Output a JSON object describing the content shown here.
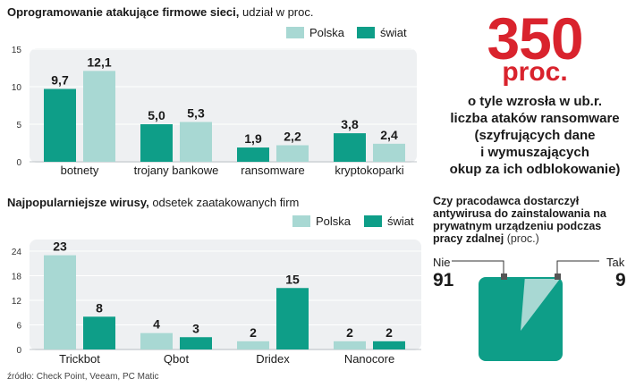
{
  "colors": {
    "polska": "#a8d8d3",
    "swiat": "#0e9e88",
    "panel": "#eef0f2",
    "accent": "#d9232d"
  },
  "chart_data": [
    {
      "type": "bar",
      "title": "Oprogramowanie atakujące firmowe sieci,",
      "subtitle": "udział w proc.",
      "categories": [
        "botnety",
        "trojany bankowe",
        "ransomware",
        "kryptokoparki"
      ],
      "series": [
        {
          "name": "świat",
          "values": [
            9.7,
            5.0,
            1.9,
            3.8
          ],
          "labels": [
            "9,7",
            "5,0",
            "1,9",
            "3,8"
          ]
        },
        {
          "name": "Polska",
          "values": [
            12.1,
            5.3,
            2.2,
            2.4
          ],
          "labels": [
            "12,1",
            "5,3",
            "2,2",
            "2,4"
          ]
        }
      ],
      "yticks": [
        "0",
        "5",
        "10",
        "15"
      ],
      "ylim": [
        0,
        15
      ],
      "legend": [
        "Polska",
        "świat"
      ]
    },
    {
      "type": "bar",
      "title": "Najpopularniejsze wirusy,",
      "subtitle": "odsetek zaatakowanych firm",
      "categories": [
        "Trickbot",
        "Qbot",
        "Dridex",
        "Nanocore"
      ],
      "series": [
        {
          "name": "Polska",
          "values": [
            23,
            4,
            2,
            2
          ],
          "labels": [
            "23",
            "4",
            "2",
            "2"
          ]
        },
        {
          "name": "świat",
          "values": [
            8,
            3,
            15,
            2
          ],
          "labels": [
            "8",
            "3",
            "15",
            "2"
          ]
        }
      ],
      "yticks": [
        "0",
        "6",
        "12",
        "18",
        "24"
      ],
      "ylim": [
        0,
        24
      ],
      "legend": [
        "Polska",
        "świat"
      ]
    },
    {
      "type": "pie",
      "title": "Czy pracodawca dostarczył antywirusa do zainstalowania na prywatnym urządzeniu podczas pracy zdalnej",
      "unit": "(proc.)",
      "slices": [
        {
          "label": "Nie",
          "value": 91,
          "text": "91"
        },
        {
          "label": "Tak",
          "value": 9,
          "text": "9"
        }
      ]
    }
  ],
  "highlight": {
    "number": "350",
    "unit": "proc.",
    "text": [
      "o tyle wzrosła w ub.r.",
      "liczba ataków ransomware",
      "(szyfrujących dane",
      "i wymuszających",
      "okup za ich odblokowanie)"
    ]
  },
  "source": "źródło: Check Point, Veeam, PC Matic"
}
